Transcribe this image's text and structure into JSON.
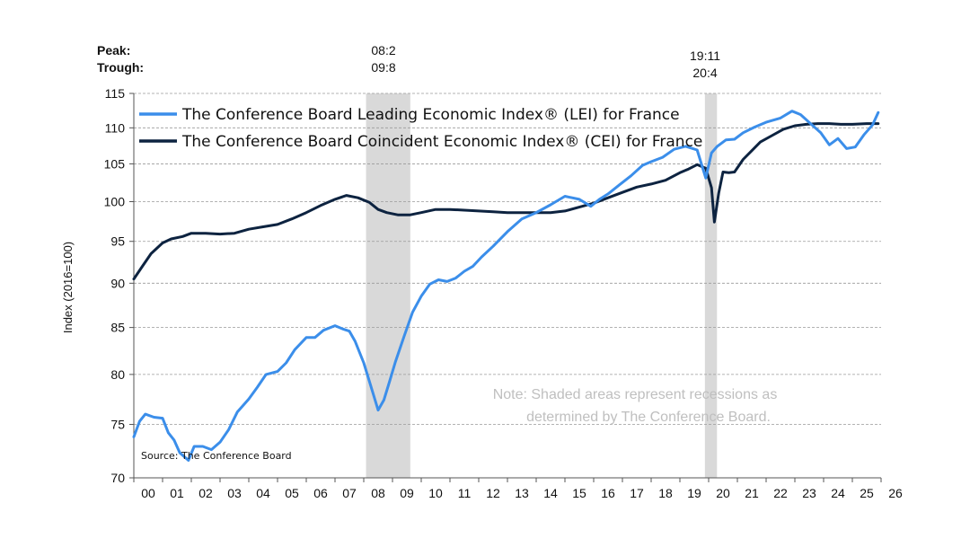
{
  "chart_data": {
    "type": "line",
    "ylabel": "Index (2016=100)",
    "yscale": "log",
    "ylim": [
      70,
      115
    ],
    "yticks": [
      70,
      75,
      80,
      85,
      90,
      95,
      100,
      105,
      110,
      115
    ],
    "xlim": [
      2000,
      2026
    ],
    "xtick_labels": [
      "00",
      "01",
      "02",
      "03",
      "04",
      "05",
      "06",
      "07",
      "08",
      "09",
      "10",
      "11",
      "12",
      "13",
      "14",
      "15",
      "16",
      "17",
      "18",
      "19",
      "20",
      "21",
      "22",
      "23",
      "24",
      "25",
      "26"
    ],
    "grid": "horizontal dashed",
    "legend_position": "top-left",
    "series": [
      {
        "name": "The Conference Board Leading Economic Index® (LEI) for France",
        "color": "#3b8eea",
        "x": [
          2000.0,
          2000.2,
          2000.4,
          2000.7,
          2001.0,
          2001.2,
          2001.4,
          2001.6,
          2001.9,
          2002.1,
          2002.4,
          2002.7,
          2003.0,
          2003.3,
          2003.6,
          2004.0,
          2004.3,
          2004.6,
          2005.0,
          2005.3,
          2005.6,
          2006.0,
          2006.3,
          2006.6,
          2007.0,
          2007.3,
          2007.5,
          2007.7,
          2008.0,
          2008.3,
          2008.5,
          2008.7,
          2008.9,
          2009.1,
          2009.4,
          2009.7,
          2010.0,
          2010.3,
          2010.6,
          2010.9,
          2011.2,
          2011.5,
          2011.8,
          2012.1,
          2012.5,
          2013.0,
          2013.5,
          2014.0,
          2014.5,
          2015.0,
          2015.5,
          2015.9,
          2016.2,
          2016.5,
          2016.9,
          2017.3,
          2017.7,
          2018.0,
          2018.4,
          2018.8,
          2019.2,
          2019.6,
          2019.9,
          2020.1,
          2020.3,
          2020.6,
          2020.9,
          2021.2,
          2021.6,
          2022.0,
          2022.5,
          2022.9,
          2023.2,
          2023.6,
          2023.9,
          2024.2,
          2024.5,
          2024.8,
          2025.1,
          2025.4,
          2025.7,
          2025.9
        ],
        "values": [
          73.8,
          75.3,
          76.0,
          75.7,
          75.6,
          74.2,
          73.5,
          72.3,
          71.6,
          72.9,
          72.9,
          72.6,
          73.3,
          74.5,
          76.2,
          77.5,
          78.7,
          80.0,
          80.3,
          81.2,
          82.6,
          83.9,
          83.9,
          84.7,
          85.2,
          84.8,
          84.6,
          83.5,
          81.2,
          78.3,
          76.4,
          77.4,
          79.3,
          81.3,
          84.0,
          86.7,
          88.5,
          89.9,
          90.4,
          90.2,
          90.6,
          91.4,
          92.0,
          93.1,
          94.4,
          96.2,
          97.8,
          98.6,
          99.6,
          100.7,
          100.3,
          99.4,
          100.3,
          101.0,
          102.2,
          103.4,
          104.8,
          105.3,
          105.9,
          107.0,
          107.4,
          106.9,
          103.1,
          106.5,
          107.4,
          108.3,
          108.4,
          109.3,
          110.1,
          110.8,
          111.4,
          112.4,
          111.9,
          110.4,
          109.3,
          107.6,
          108.5,
          107.1,
          107.3,
          109.0,
          110.4,
          112.2
        ]
      },
      {
        "name": "The Conference Board Coincident Economic Index® (CEI) for France",
        "color": "#0d2340",
        "x": [
          2000.0,
          2000.3,
          2000.6,
          2001.0,
          2001.3,
          2001.7,
          2002.0,
          2002.5,
          2003.0,
          2003.5,
          2004.0,
          2004.5,
          2005.0,
          2005.5,
          2006.0,
          2006.5,
          2007.0,
          2007.4,
          2007.8,
          2008.2,
          2008.5,
          2008.8,
          2009.2,
          2009.6,
          2010.0,
          2010.5,
          2011.0,
          2011.5,
          2012.0,
          2012.5,
          2013.0,
          2013.5,
          2014.0,
          2014.5,
          2015.0,
          2015.5,
          2016.0,
          2016.5,
          2017.0,
          2017.5,
          2018.0,
          2018.5,
          2019.0,
          2019.3,
          2019.6,
          2019.9,
          2020.1,
          2020.2,
          2020.35,
          2020.5,
          2020.7,
          2020.9,
          2021.2,
          2021.5,
          2021.8,
          2022.2,
          2022.6,
          2023.0,
          2023.4,
          2023.8,
          2024.2,
          2024.6,
          2025.0,
          2025.5,
          2025.9
        ],
        "values": [
          90.5,
          92.0,
          93.5,
          94.8,
          95.3,
          95.6,
          96.0,
          96.0,
          95.9,
          96.0,
          96.5,
          96.8,
          97.1,
          97.8,
          98.6,
          99.5,
          100.3,
          100.8,
          100.5,
          99.9,
          99.0,
          98.6,
          98.3,
          98.3,
          98.6,
          99.0,
          99.0,
          98.9,
          98.8,
          98.7,
          98.6,
          98.6,
          98.6,
          98.6,
          98.8,
          99.3,
          99.8,
          100.5,
          101.2,
          101.9,
          102.3,
          102.8,
          103.8,
          104.3,
          104.9,
          104.4,
          101.8,
          97.4,
          101.1,
          103.9,
          103.8,
          103.9,
          105.6,
          106.8,
          108.0,
          108.9,
          109.8,
          110.3,
          110.5,
          110.6,
          110.6,
          110.5,
          110.5,
          110.6,
          110.6
        ]
      }
    ],
    "recessions": [
      {
        "peak": "08:2",
        "trough": "09:8",
        "start": 2008.08,
        "end": 2009.62
      },
      {
        "peak": "19:11",
        "trough": "20:4",
        "start": 2019.87,
        "end": 2020.29
      }
    ],
    "peak_label": "Peak:",
    "trough_label": "Trough:",
    "note": [
      "Note: Shaded areas represent recessions as",
      "determined by The Conference Board."
    ],
    "source": "Source: The Conference Board",
    "recession_color": "#d9d9d9"
  }
}
